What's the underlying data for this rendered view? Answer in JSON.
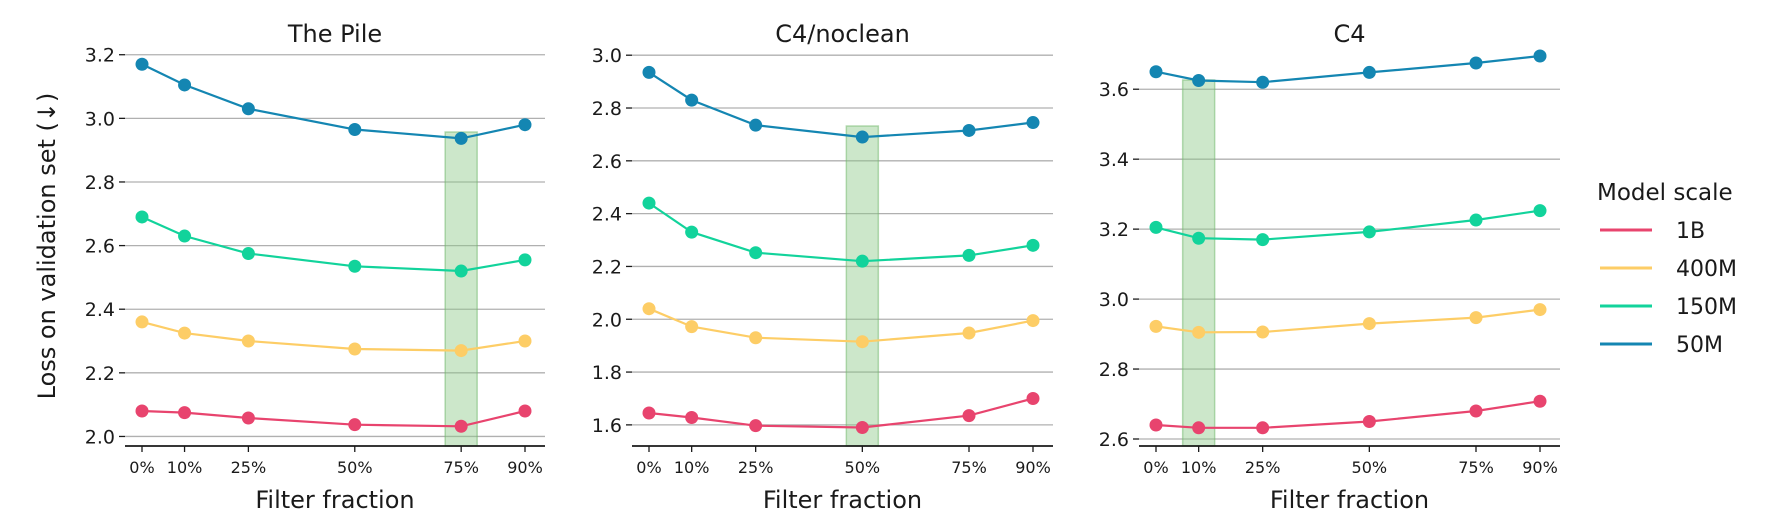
{
  "colors": {
    "1B": "#e8446e",
    "400M": "#fdcd66",
    "150M": "#12d39b",
    "50M": "#1486b2",
    "highlight": "#8fc98a",
    "grid": "#b0b0b0",
    "axis": "#1a1a1a"
  },
  "figure": {
    "ylabel": "Loss on validation set (↓)"
  },
  "legend": {
    "title": "Model scale",
    "items": [
      "1B",
      "400M",
      "150M",
      "50M"
    ]
  },
  "chart_data": [
    {
      "type": "line",
      "title": "The Pile",
      "xlabel": "Filter fraction",
      "ylabel": "Loss on validation set (↓)",
      "x": [
        0,
        10,
        25,
        50,
        75,
        90
      ],
      "x_tick_labels": [
        "0%",
        "10%",
        "25%",
        "50%",
        "75%",
        "90%"
      ],
      "ylim": [
        1.97,
        3.24
      ],
      "yticks": [
        2.0,
        2.2,
        2.4,
        2.6,
        2.8,
        3.0,
        3.2
      ],
      "ytick_labels": [
        "2.0",
        "2.2",
        "2.4",
        "2.6",
        "2.8",
        "3.0",
        "3.2"
      ],
      "highlight_x": 75,
      "grid": "horizontal",
      "series": [
        {
          "name": "1B",
          "values": [
            2.08,
            2.075,
            2.058,
            2.037,
            2.032,
            2.08
          ]
        },
        {
          "name": "400M",
          "values": [
            2.36,
            2.325,
            2.3,
            2.275,
            2.27,
            2.3
          ]
        },
        {
          "name": "150M",
          "values": [
            2.69,
            2.63,
            2.575,
            2.535,
            2.52,
            2.555
          ]
        },
        {
          "name": "50M",
          "values": [
            3.17,
            3.105,
            3.03,
            2.965,
            2.937,
            2.98
          ]
        }
      ]
    },
    {
      "type": "line",
      "title": "C4/noclean",
      "xlabel": "Filter fraction",
      "x": [
        0,
        10,
        25,
        50,
        75,
        90
      ],
      "x_tick_labels": [
        "0%",
        "10%",
        "25%",
        "50%",
        "75%",
        "90%"
      ],
      "ylim": [
        1.52,
        3.05
      ],
      "yticks": [
        1.6,
        1.8,
        2.0,
        2.2,
        2.4,
        2.6,
        2.8,
        3.0
      ],
      "ytick_labels": [
        "1.6",
        "1.8",
        "2.0",
        "2.2",
        "2.4",
        "2.6",
        "2.8",
        "3.0"
      ],
      "highlight_x": 50,
      "grid": "horizontal",
      "series": [
        {
          "name": "1B",
          "values": [
            1.645,
            1.628,
            1.597,
            1.59,
            1.635,
            1.7
          ]
        },
        {
          "name": "400M",
          "values": [
            2.04,
            1.972,
            1.93,
            1.915,
            1.948,
            1.995
          ]
        },
        {
          "name": "150M",
          "values": [
            2.44,
            2.33,
            2.252,
            2.22,
            2.242,
            2.28
          ]
        },
        {
          "name": "50M",
          "values": [
            2.935,
            2.83,
            2.735,
            2.69,
            2.715,
            2.745
          ]
        }
      ]
    },
    {
      "type": "line",
      "title": "C4",
      "xlabel": "Filter fraction",
      "x": [
        0,
        10,
        25,
        50,
        75,
        90
      ],
      "x_tick_labels": [
        "0%",
        "10%",
        "25%",
        "50%",
        "75%",
        "90%"
      ],
      "ylim": [
        2.58,
        3.735
      ],
      "yticks": [
        2.6,
        2.8,
        3.0,
        3.2,
        3.4,
        3.6
      ],
      "ytick_labels": [
        "2.6",
        "2.8",
        "3.0",
        "3.2",
        "3.4",
        "3.6"
      ],
      "highlight_x": 10,
      "grid": "horizontal",
      "series": [
        {
          "name": "1B",
          "values": [
            2.64,
            2.632,
            2.632,
            2.65,
            2.68,
            2.708
          ]
        },
        {
          "name": "400M",
          "values": [
            2.922,
            2.905,
            2.906,
            2.93,
            2.947,
            2.97
          ]
        },
        {
          "name": "150M",
          "values": [
            3.205,
            3.174,
            3.17,
            3.192,
            3.226,
            3.253
          ]
        },
        {
          "name": "50M",
          "values": [
            3.65,
            3.625,
            3.62,
            3.648,
            3.675,
            3.695
          ]
        }
      ]
    }
  ]
}
